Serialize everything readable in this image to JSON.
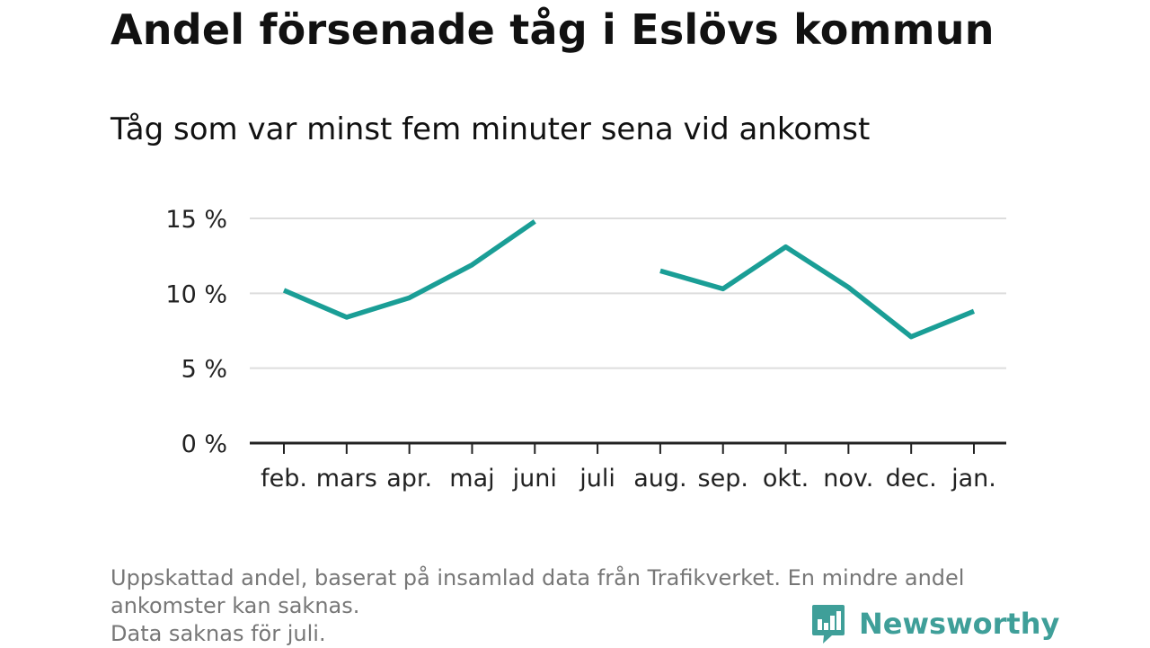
{
  "header": {
    "title": "Andel försenade tåg i Eslövs kommun",
    "subtitle": "Tåg som var minst fem minuter sena vid ankomst"
  },
  "chart_data": {
    "type": "line",
    "categories": [
      "feb.",
      "mars",
      "apr.",
      "maj",
      "juni",
      "juli",
      "aug.",
      "sep.",
      "okt.",
      "nov.",
      "dec.",
      "jan."
    ],
    "series": [
      {
        "values": [
          10.2,
          8.4,
          9.7,
          11.9,
          14.8,
          null,
          11.5,
          10.3,
          13.1,
          10.4,
          7.1,
          8.8
        ]
      }
    ],
    "y_ticks": [
      0,
      5,
      10,
      15
    ],
    "y_tick_labels": [
      "0 %",
      "5 %",
      "10 %",
      "15 %"
    ],
    "ylim": [
      0,
      15
    ],
    "grid": true,
    "line_color": "#1a9e96"
  },
  "footnote": {
    "lines": [
      "Uppskattad andel, baserat på insamlad data från Trafikverket. En mindre andel",
      "ankomster kan saknas.",
      "Data saknas för juli."
    ]
  },
  "brand": {
    "name": "Newsworthy",
    "icon": "newsworthy-logo-icon",
    "color": "#3f9f99"
  }
}
